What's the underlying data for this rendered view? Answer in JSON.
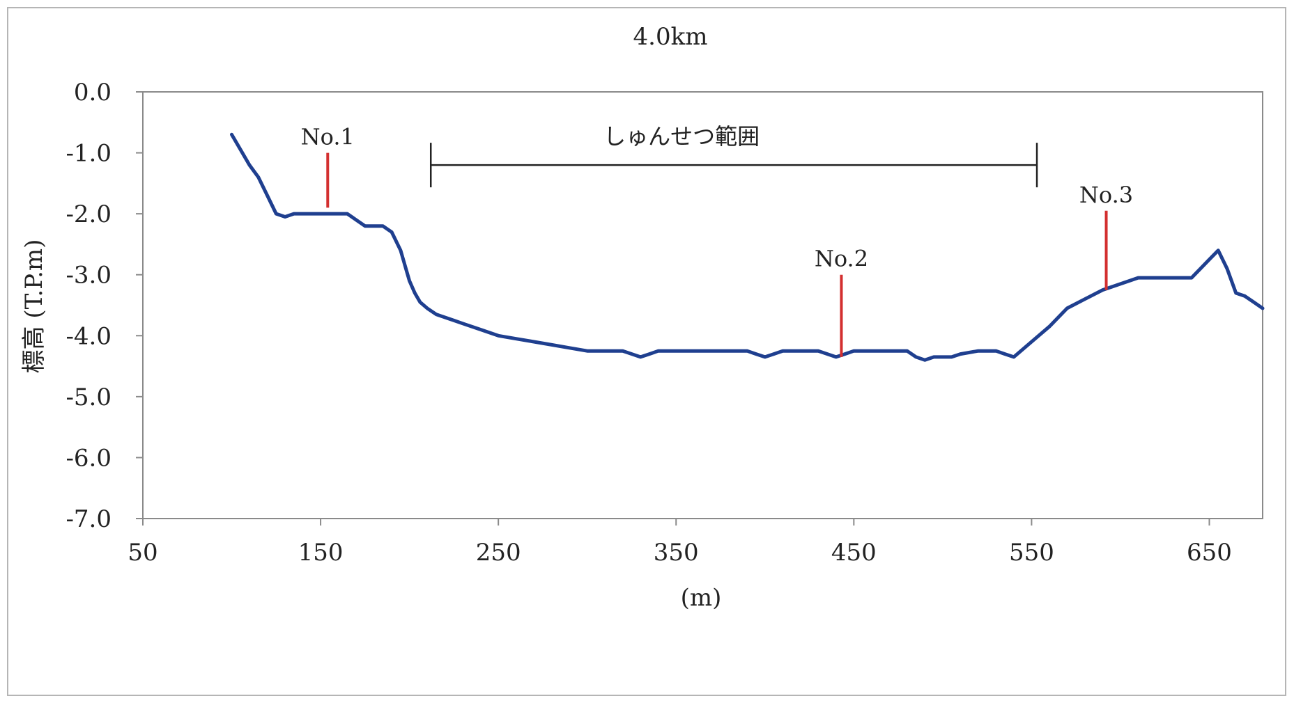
{
  "chart_data": {
    "type": "line",
    "title": "4.0km",
    "xlabel": "(m)",
    "ylabel": "標高 (T.P.m)",
    "xlim": [
      50,
      680
    ],
    "ylim": [
      -7.0,
      0.0
    ],
    "x_ticks": [
      "50",
      "150",
      "250",
      "350",
      "450",
      "550",
      "650"
    ],
    "y_ticks": [
      "0.0",
      "-1.0",
      "-2.0",
      "-3.0",
      "-4.0",
      "-5.0",
      "-6.0",
      "-7.0"
    ],
    "grid": false,
    "series": [
      {
        "color": "#1f3f8f",
        "x": [
          100,
          105,
          110,
          115,
          120,
          125,
          130,
          135,
          140,
          145,
          150,
          155,
          160,
          165,
          170,
          175,
          180,
          185,
          190,
          195,
          198,
          200,
          203,
          206,
          210,
          215,
          220,
          225,
          230,
          240,
          250,
          260,
          270,
          280,
          290,
          300,
          310,
          320,
          330,
          335,
          340,
          350,
          360,
          370,
          380,
          390,
          395,
          400,
          405,
          410,
          420,
          430,
          440,
          445,
          450,
          460,
          470,
          480,
          485,
          490,
          495,
          500,
          505,
          510,
          520,
          530,
          535,
          540,
          550,
          560,
          565,
          570,
          580,
          590,
          600,
          610,
          620,
          630,
          640,
          645,
          650,
          655,
          660,
          665,
          670,
          675,
          680
        ],
        "y": [
          -0.7,
          -0.95,
          -1.2,
          -1.4,
          -1.7,
          -2.0,
          -2.05,
          -2.0,
          -2.0,
          -2.0,
          -2.0,
          -2.0,
          -2.0,
          -2.0,
          -2.1,
          -2.2,
          -2.2,
          -2.2,
          -2.3,
          -2.6,
          -2.9,
          -3.1,
          -3.3,
          -3.45,
          -3.55,
          -3.65,
          -3.7,
          -3.75,
          -3.8,
          -3.9,
          -4.0,
          -4.05,
          -4.1,
          -4.15,
          -4.2,
          -4.25,
          -4.25,
          -4.25,
          -4.35,
          -4.3,
          -4.25,
          -4.25,
          -4.25,
          -4.25,
          -4.25,
          -4.25,
          -4.3,
          -4.35,
          -4.3,
          -4.25,
          -4.25,
          -4.25,
          -4.35,
          -4.3,
          -4.25,
          -4.25,
          -4.25,
          -4.25,
          -4.35,
          -4.4,
          -4.35,
          -4.35,
          -4.35,
          -4.3,
          -4.25,
          -4.25,
          -4.3,
          -4.35,
          -4.1,
          -3.85,
          -3.7,
          -3.55,
          -3.4,
          -3.25,
          -3.15,
          -3.05,
          -3.05,
          -3.05,
          -3.05,
          -2.9,
          -2.75,
          -2.6,
          -2.9,
          -3.3,
          -3.35,
          -3.45,
          -3.55
        ]
      }
    ],
    "markers": [
      {
        "label": "No.1",
        "x": 154,
        "y_top": -1.0,
        "y_bottom": -1.9,
        "color": "#d32f2f"
      },
      {
        "label": "No.2",
        "x": 443,
        "y_top": -3.0,
        "y_bottom": -4.35,
        "color": "#d32f2f"
      },
      {
        "label": "No.3",
        "x": 592,
        "y_top": -1.95,
        "y_bottom": -3.25,
        "color": "#d32f2f"
      }
    ],
    "range_annotation": {
      "label": "しゅんせつ範囲",
      "x_start": 212,
      "x_end": 553,
      "y": -1.2
    }
  }
}
